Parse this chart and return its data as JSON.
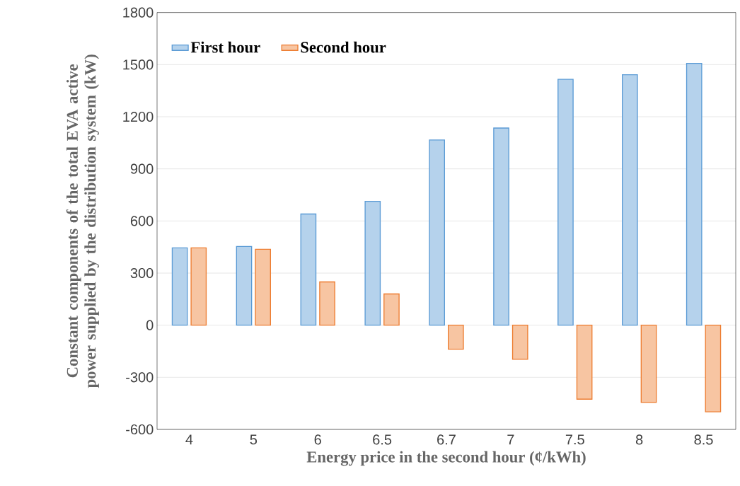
{
  "chart_data": {
    "type": "bar",
    "xlabel": "Energy price in the second hour (¢/kWh)",
    "ylabel": "Constant components of  the total EVA active power supplied by the distribution system (kW)",
    "categories": [
      "4",
      "5",
      "6",
      "6.5",
      "6.7",
      "7",
      "7.5",
      "8",
      "8.5"
    ],
    "series": [
      {
        "name": "First hour",
        "color": "#5b9bd5",
        "values": [
          445,
          453,
          640,
          713,
          1066,
          1135,
          1415,
          1442,
          1507
        ]
      },
      {
        "name": "Second hour",
        "color": "#ed7d31",
        "values": [
          445,
          437,
          249,
          180,
          -138,
          -196,
          -426,
          -445,
          -499
        ]
      }
    ],
    "ylim": [
      -600,
      1800
    ],
    "yticks": [
      -600,
      -300,
      0,
      300,
      600,
      900,
      1200,
      1500,
      1800
    ],
    "grid": "y",
    "legend": "top left"
  }
}
